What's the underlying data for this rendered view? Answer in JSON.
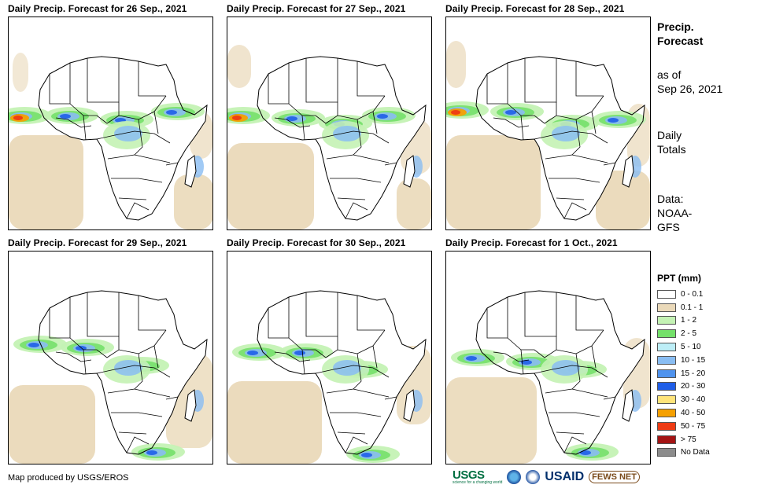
{
  "panels": [
    {
      "title": "Daily Precip. Forecast for 26 Sep., 2021"
    },
    {
      "title": "Daily Precip. Forecast for 27 Sep., 2021"
    },
    {
      "title": "Daily Precip. Forecast for 28 Sep., 2021"
    },
    {
      "title": "Daily Precip. Forecast for 29 Sep., 2021"
    },
    {
      "title": "Daily Precip. Forecast for 30 Sep., 2021"
    },
    {
      "title": "Daily Precip. Forecast for 1 Oct., 2021"
    }
  ],
  "sidebar": {
    "heading_line1": "Precip.",
    "heading_line2": "Forecast",
    "asof_line1": "as of",
    "asof_line2": "Sep 26, 2021",
    "daily_line1": "Daily",
    "daily_line2": "Totals",
    "data_line1": "Data:",
    "data_line2": "NOAA-",
    "data_line3": "GFS"
  },
  "legend": {
    "title": "PPT (mm)",
    "items": [
      {
        "label": "0 - 0.1",
        "color": "#ffffff"
      },
      {
        "label": "0.1 - 1",
        "color": "#ead9b9"
      },
      {
        "label": "1 - 2",
        "color": "#c4f2b4"
      },
      {
        "label": "2 - 5",
        "color": "#74e06a"
      },
      {
        "label": "5 - 10",
        "color": "#bdeef7"
      },
      {
        "label": "10 - 15",
        "color": "#89bdf2"
      },
      {
        "label": "15 - 20",
        "color": "#4f93ee"
      },
      {
        "label": "20 - 30",
        "color": "#1f5ee8"
      },
      {
        "label": "30 - 40",
        "color": "#ffe47a"
      },
      {
        "label": "40 - 50",
        "color": "#f5a000"
      },
      {
        "label": "50 - 75",
        "color": "#ee3b14"
      },
      {
        "label": "> 75",
        "color": "#a41414"
      },
      {
        "label": "No Data",
        "color": "#8c8c8c"
      }
    ]
  },
  "footer": {
    "credit": "Map produced by USGS/EROS"
  },
  "logos": {
    "usgs": "USGS",
    "usgs_tag": "science for a changing world",
    "usaid": "USAID",
    "fews": "FEWS NET"
  }
}
